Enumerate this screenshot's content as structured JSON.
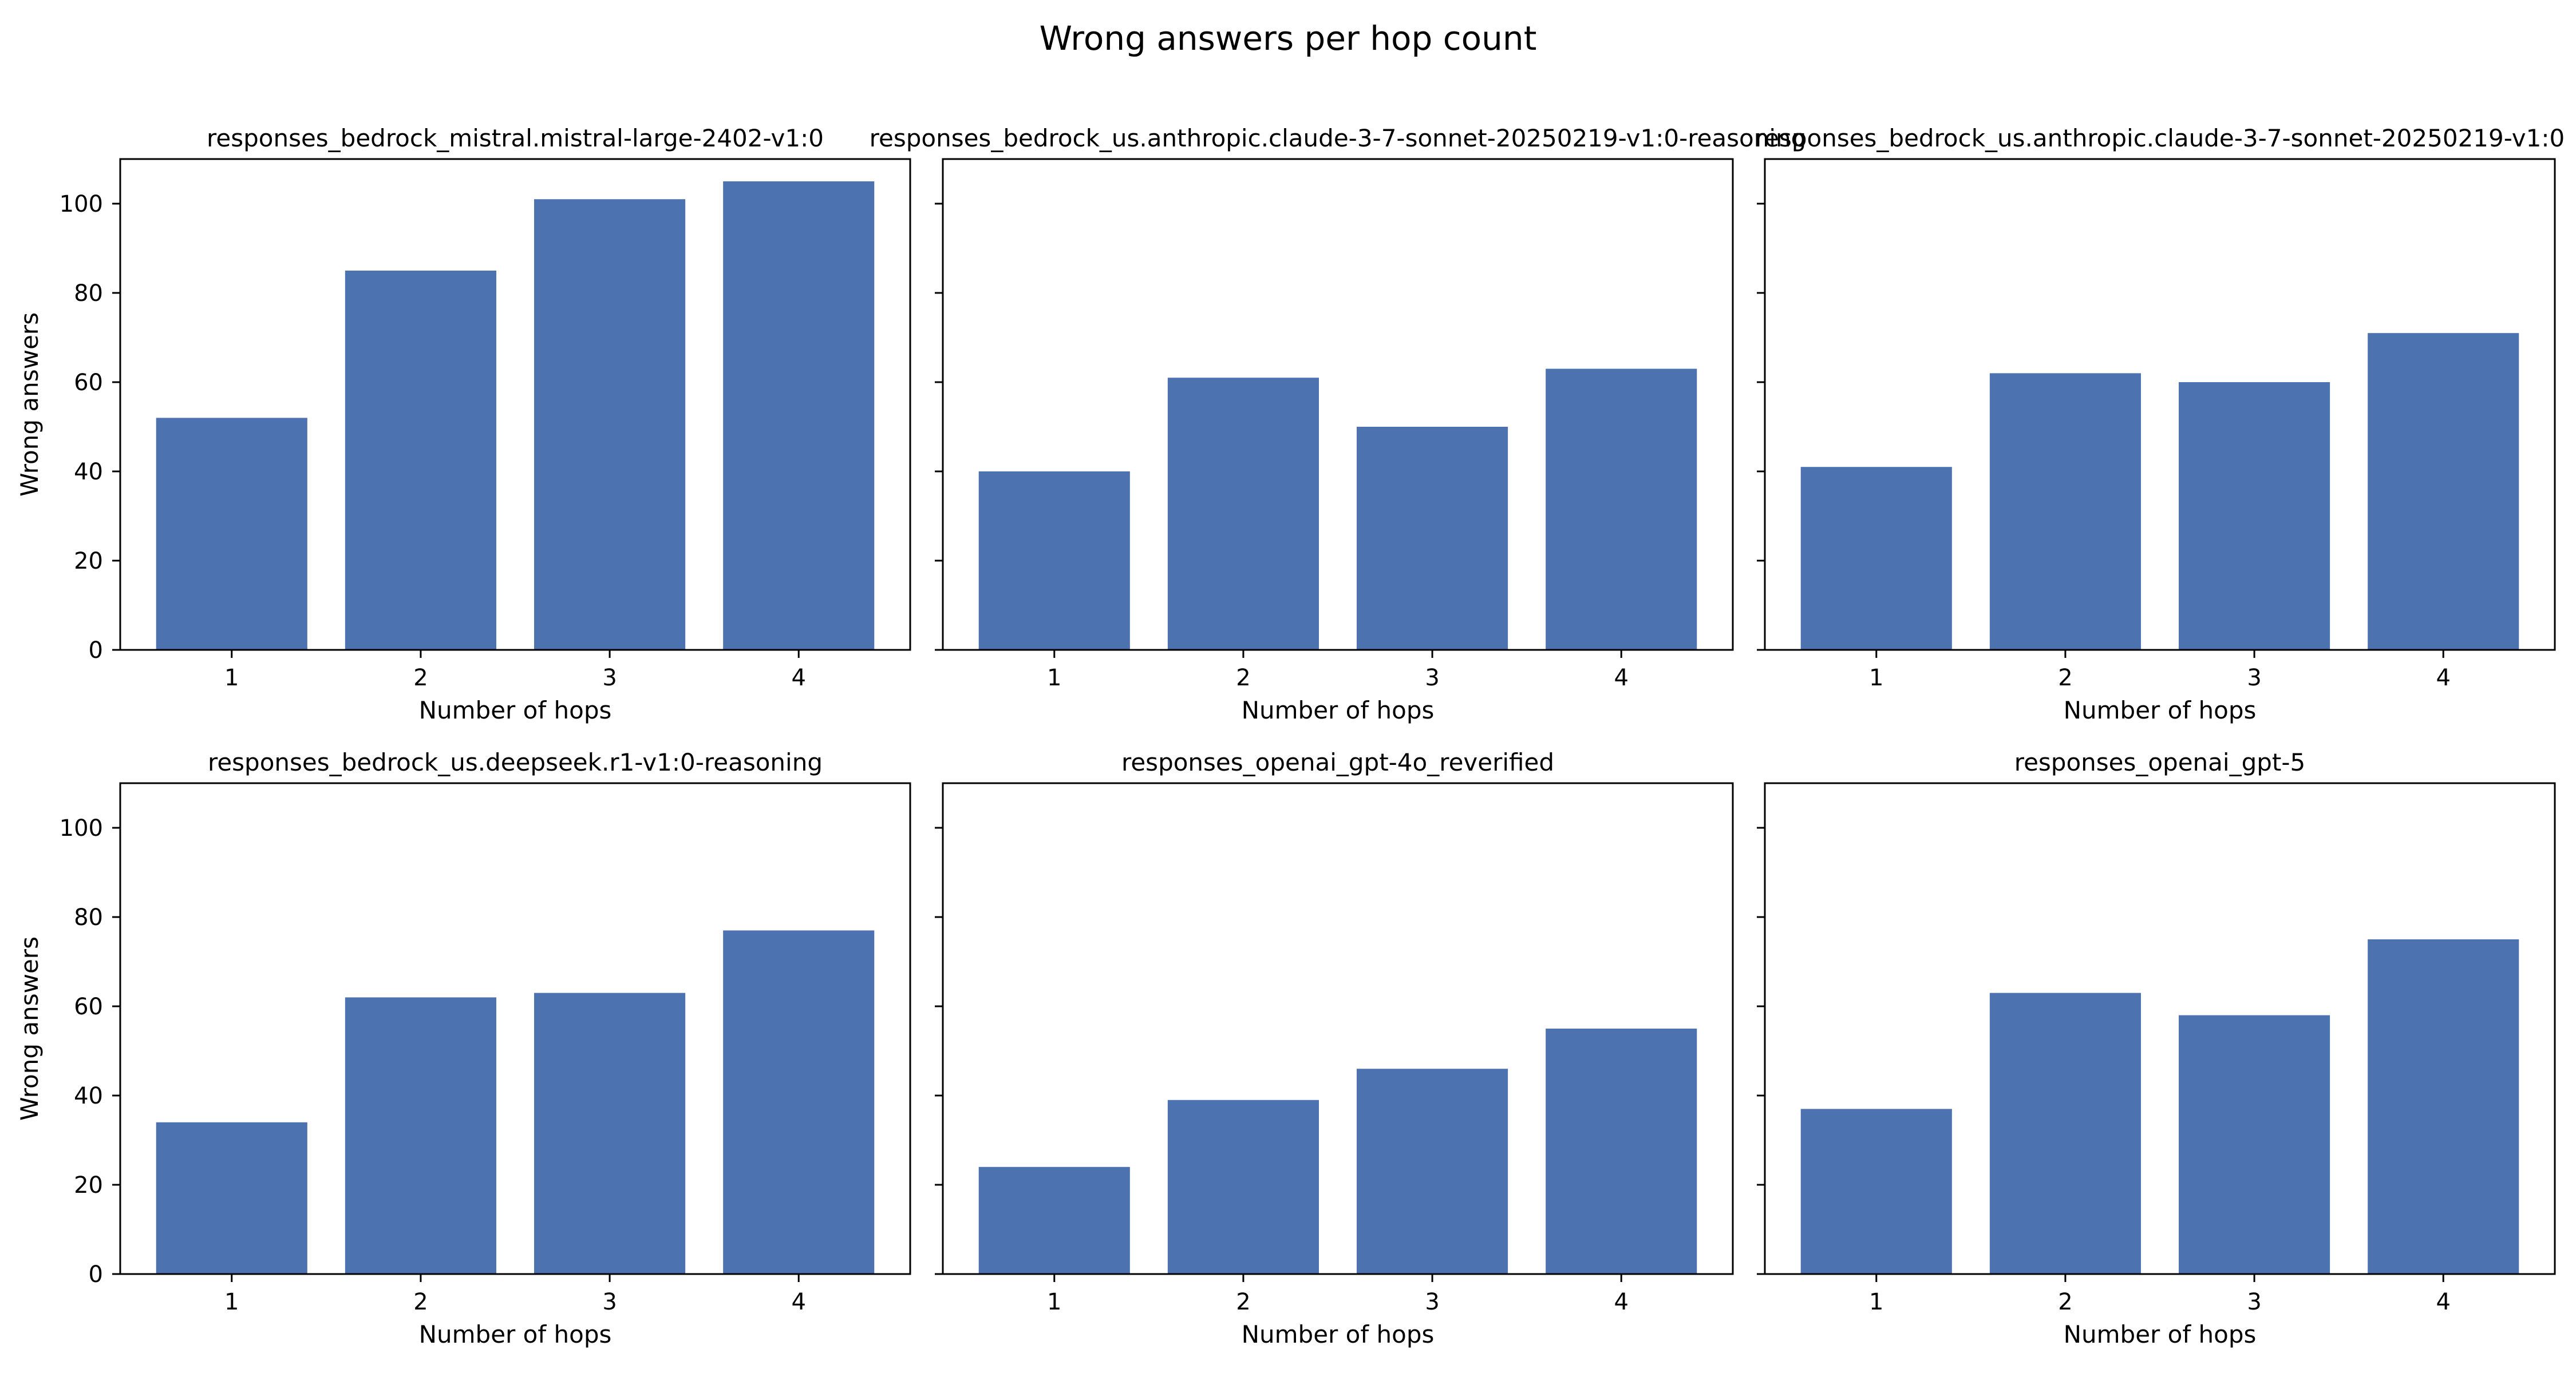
{
  "figure": {
    "title": "Wrong answers per hop count"
  },
  "colors": {
    "bar": "#4C72B0",
    "axis": "#000000",
    "background": "#ffffff"
  },
  "chart_data": [
    {
      "type": "bar",
      "title": "responses_bedrock_mistral.mistral-large-2402-v1:0",
      "xlabel": "Number of hops",
      "ylabel": "Wrong answers",
      "categories": [
        "1",
        "2",
        "3",
        "4"
      ],
      "values": [
        52,
        85,
        101,
        105
      ],
      "ylim": [
        0,
        110
      ],
      "yticks": [
        0,
        20,
        40,
        60,
        80,
        100
      ],
      "grid": false
    },
    {
      "type": "bar",
      "title": "responses_bedrock_us.anthropic.claude-3-7-sonnet-20250219-v1:0-reasoning",
      "xlabel": "Number of hops",
      "ylabel": "",
      "categories": [
        "1",
        "2",
        "3",
        "4"
      ],
      "values": [
        40,
        61,
        50,
        63
      ],
      "ylim": [
        0,
        110
      ],
      "yticks": [
        0,
        20,
        40,
        60,
        80,
        100
      ],
      "grid": false
    },
    {
      "type": "bar",
      "title": "responses_bedrock_us.anthropic.claude-3-7-sonnet-20250219-v1:0",
      "xlabel": "Number of hops",
      "ylabel": "",
      "categories": [
        "1",
        "2",
        "3",
        "4"
      ],
      "values": [
        41,
        62,
        60,
        71
      ],
      "ylim": [
        0,
        110
      ],
      "yticks": [
        0,
        20,
        40,
        60,
        80,
        100
      ],
      "grid": false
    },
    {
      "type": "bar",
      "title": "responses_bedrock_us.deepseek.r1-v1:0-reasoning",
      "xlabel": "Number of hops",
      "ylabel": "Wrong answers",
      "categories": [
        "1",
        "2",
        "3",
        "4"
      ],
      "values": [
        34,
        62,
        63,
        77
      ],
      "ylim": [
        0,
        110
      ],
      "yticks": [
        0,
        20,
        40,
        60,
        80,
        100
      ],
      "grid": false
    },
    {
      "type": "bar",
      "title": "responses_openai_gpt-4o_reverified",
      "xlabel": "Number of hops",
      "ylabel": "",
      "categories": [
        "1",
        "2",
        "3",
        "4"
      ],
      "values": [
        24,
        39,
        46,
        55
      ],
      "ylim": [
        0,
        110
      ],
      "yticks": [
        0,
        20,
        40,
        60,
        80,
        100
      ],
      "grid": false
    },
    {
      "type": "bar",
      "title": "responses_openai_gpt-5",
      "xlabel": "Number of hops",
      "ylabel": "",
      "categories": [
        "1",
        "2",
        "3",
        "4"
      ],
      "values": [
        37,
        63,
        58,
        75
      ],
      "ylim": [
        0,
        110
      ],
      "yticks": [
        0,
        20,
        40,
        60,
        80,
        100
      ],
      "grid": false
    }
  ]
}
